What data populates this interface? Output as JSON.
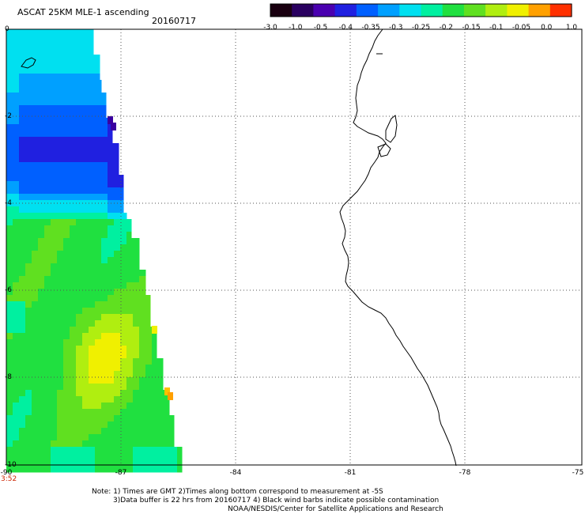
{
  "header": {
    "title": "ASCAT 25KM MLE-1 ascending",
    "date": "20160717"
  },
  "colorbar": {
    "labels": [
      "-3.0",
      "-1.0",
      "-0.5",
      "-0.4",
      "-0.35",
      "-0.3",
      "-0.25",
      "-0.2",
      "-0.15",
      "-0.1",
      "-0.05",
      "0.0",
      "1.0"
    ],
    "colors": [
      "#1a0010",
      "#2a0060",
      "#4a00b0",
      "#2020e0",
      "#0060ff",
      "#00a0ff",
      "#00e0f0",
      "#00f0a0",
      "#20e040",
      "#60e020",
      "#b0ee10",
      "#f0f000",
      "#ffa000",
      "#ff3000"
    ]
  },
  "axes": {
    "x_ticks": [
      "-90",
      "-87",
      "-84",
      "-81",
      "-78",
      "-75"
    ],
    "y_ticks": [
      "0",
      "-2",
      "-4",
      "-6",
      "-8",
      "-10"
    ],
    "time_label": "3:52"
  },
  "notes": {
    "line1": "Note: 1) Times are GMT 2)Times along bottom correspond to measurement at -5S",
    "line2": "3)Data buffer is 22 hrs from 20160717 4) Black wind barbs indicate possible contamination",
    "line3": "NOAA/NESDIS/Center for Satellite Applications and Research"
  }
}
